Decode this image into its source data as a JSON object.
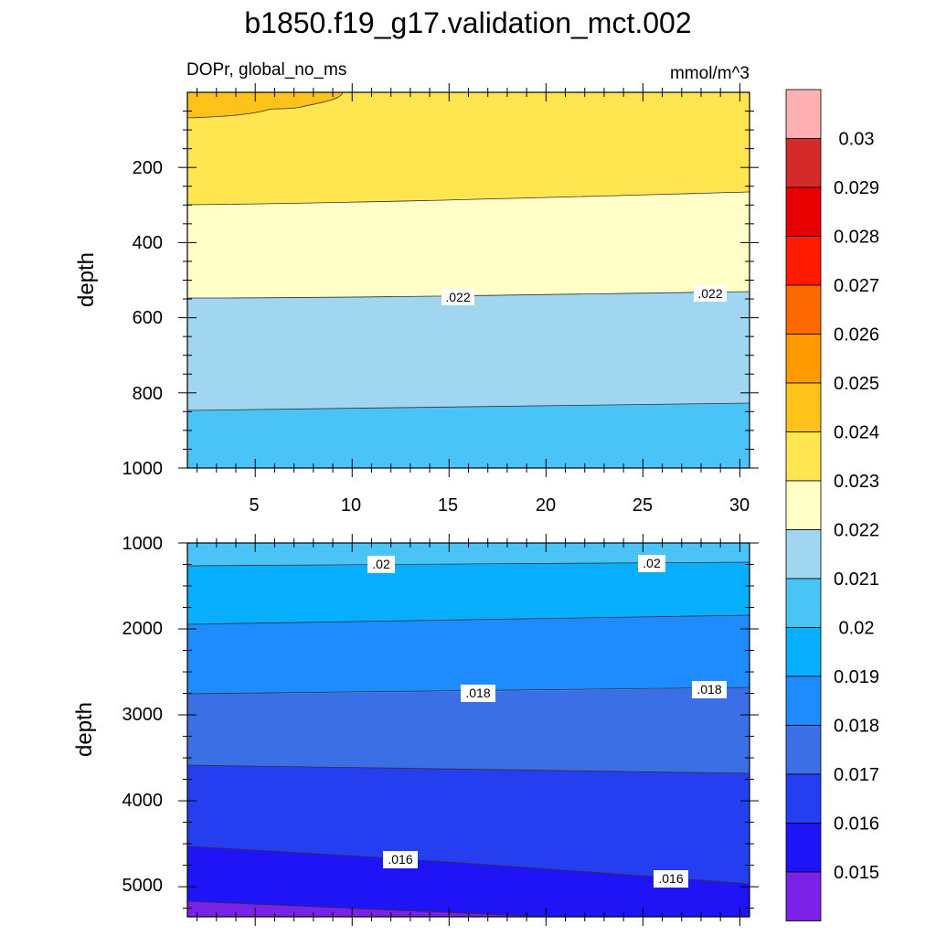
{
  "title": "b1850.f19_g17.validation_mct.002",
  "subtitle_left": "DOPr, global_no_ms",
  "subtitle_right": "mmol/m^3",
  "colorbar": {
    "labels": [
      "0.03",
      "0.029",
      "0.028",
      "0.027",
      "0.026",
      "0.025",
      "0.024",
      "0.023",
      "0.022",
      "0.021",
      "0.02",
      "0.019",
      "0.018",
      "0.017",
      "0.016",
      "0.015"
    ],
    "colors": [
      "#ffb0b4",
      "#d42a2a",
      "#e60000",
      "#ff1a00",
      "#ff6a00",
      "#ff9a00",
      "#ffc21a",
      "#ffe650",
      "#ffffc8",
      "#a0d6f0",
      "#4ac3f7",
      "#08aeff",
      "#1e8cff",
      "#3a6fe6",
      "#253ff0",
      "#1e14f5",
      "#7a22e8"
    ]
  },
  "chart_data": [
    {
      "type": "contour",
      "panel": "top",
      "ylabel": "depth",
      "xlim": [
        1.5,
        30.5
      ],
      "ylim": [
        1000,
        0
      ],
      "xticks": [
        5,
        10,
        15,
        20,
        25,
        30
      ],
      "yticks": [
        200,
        400,
        600,
        800,
        1000
      ],
      "bands": [
        {
          "range": "0.022-0.023 (depth ~300-550)",
          "color": "#ffffc8"
        },
        {
          "range": "0.021-0.022 (depth ~550-840)",
          "color": "#a0d6f0"
        },
        {
          "range": "0.02-0.021 (depth ~840-1000)",
          "color": "#4ac3f7"
        },
        {
          "range": "0.023-0.024 (depth ~0-300)",
          "color": "#ffe650"
        },
        {
          "range": "0.024-0.025 (near surface, x<10)",
          "color": "#ffc21a"
        }
      ],
      "contour_labels": [
        {
          "text": ".022",
          "x": 15.5,
          "depth": 540
        },
        {
          "text": ".022",
          "x": 28.5,
          "depth": 528
        }
      ]
    },
    {
      "type": "contour",
      "panel": "bottom",
      "ylabel": "depth",
      "xlim": [
        1.5,
        30.5
      ],
      "ylim": [
        5350,
        1000
      ],
      "yticks": [
        1000,
        2000,
        3000,
        4000,
        5000
      ],
      "bands": [
        {
          "range": "0.02-0.021",
          "color": "#4ac3f7"
        },
        {
          "range": "0.019-0.02",
          "color": "#08aeff"
        },
        {
          "range": "0.018-0.019",
          "color": "#1e8cff"
        },
        {
          "range": "0.017-0.018",
          "color": "#3a6fe6"
        },
        {
          "range": "0.016-0.017",
          "color": "#253ff0"
        },
        {
          "range": "0.015-0.016",
          "color": "#1e14f5"
        },
        {
          "range": "<0.015",
          "color": "#7a22e8"
        }
      ],
      "contour_labels": [
        {
          "text": ".02",
          "x": 11.5,
          "depth": 1250
        },
        {
          "text": ".02",
          "x": 25.5,
          "depth": 1240
        },
        {
          "text": ".018",
          "x": 16.5,
          "depth": 2780
        },
        {
          "text": ".018",
          "x": 28.5,
          "depth": 2740
        },
        {
          "text": ".016",
          "x": 13,
          "depth": 4720
        },
        {
          "text": ".016",
          "x": 26.5,
          "depth": 4950
        }
      ]
    }
  ]
}
